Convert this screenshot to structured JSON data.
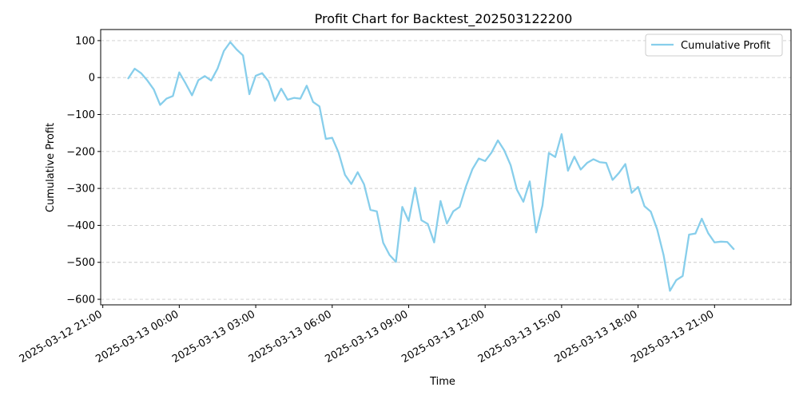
{
  "chart_data": {
    "type": "line",
    "title": "Profit Chart for Backtest_202503122200",
    "xlabel": "Time",
    "ylabel": "Cumulative Profit",
    "x_start": "2025-03-12 22:00",
    "interval_minutes": 15,
    "xlim": [
      "2025-03-12 20:55",
      "2025-03-14 00:00"
    ],
    "ylim": [
      -615,
      130
    ],
    "x_ticks": [
      "2025-03-12 21:00",
      "2025-03-13 00:00",
      "2025-03-13 03:00",
      "2025-03-13 06:00",
      "2025-03-13 09:00",
      "2025-03-13 12:00",
      "2025-03-13 15:00",
      "2025-03-13 18:00",
      "2025-03-13 21:00"
    ],
    "y_ticks": [
      100,
      0,
      -100,
      -200,
      -300,
      -400,
      -500,
      -600
    ],
    "y_tick_labels": [
      "100",
      "0",
      "−100",
      "−200",
      "−300",
      "−400",
      "−500",
      "−600"
    ],
    "grid": "y-dashed",
    "legend_position": "top-right",
    "series": [
      {
        "name": "Cumulative Profit",
        "color": "#87ceeb",
        "values": [
          -2,
          24,
          12,
          -8,
          -32,
          -74,
          -57,
          -50,
          14,
          -16,
          -48,
          -7,
          4,
          -8,
          24,
          72,
          96,
          76,
          60,
          -45,
          5,
          12,
          -10,
          -63,
          -30,
          -60,
          -55,
          -57,
          -22,
          -66,
          -78,
          -166,
          -163,
          -203,
          -263,
          -288,
          -256,
          -289,
          -358,
          -362,
          -447,
          -480,
          -499,
          -350,
          -388,
          -298,
          -386,
          -396,
          -446,
          -334,
          -395,
          -362,
          -350,
          -294,
          -248,
          -219,
          -226,
          -203,
          -170,
          -197,
          -237,
          -304,
          -336,
          -281,
          -419,
          -346,
          -204,
          -215,
          -153,
          -252,
          -214,
          -249,
          -231,
          -221,
          -229,
          -231,
          -277,
          -258,
          -234,
          -312,
          -296,
          -348,
          -363,
          -411,
          -480,
          -577,
          -548,
          -537,
          -425,
          -422,
          -382,
          -421,
          -446,
          -444,
          -445,
          -464
        ]
      }
    ]
  }
}
